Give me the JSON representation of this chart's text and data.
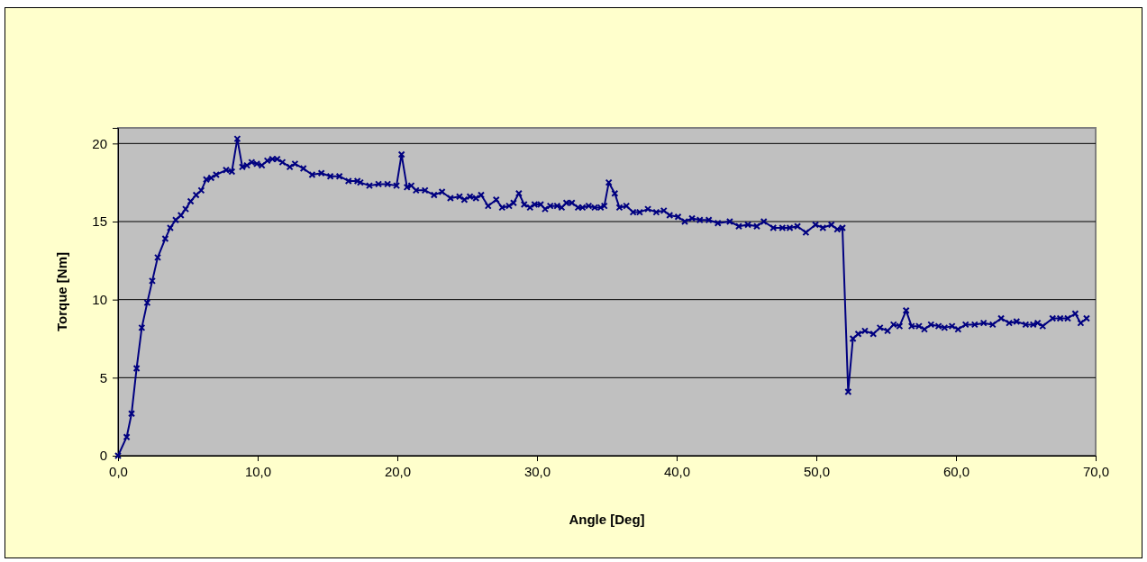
{
  "chart_data": {
    "type": "line",
    "xlabel": "Angle [Deg]",
    "ylabel": "Torque [Nm]",
    "xlim": [
      0,
      70
    ],
    "ylim": [
      0,
      21
    ],
    "xticks": [
      {
        "value": 0,
        "label": "0,0"
      },
      {
        "value": 10,
        "label": "10,0"
      },
      {
        "value": 20,
        "label": "20,0"
      },
      {
        "value": 30,
        "label": "30,0"
      },
      {
        "value": 40,
        "label": "40,0"
      },
      {
        "value": 50,
        "label": "50,0"
      },
      {
        "value": 60,
        "label": "60,0"
      },
      {
        "value": 70,
        "label": "70,0"
      }
    ],
    "yticks": [
      0,
      5,
      10,
      15,
      20
    ],
    "grid": "y",
    "marker": "cross",
    "line_style": "solid",
    "series": [
      {
        "color": "#000080",
        "x": [
          0,
          0.62,
          0.97,
          1.33,
          1.7,
          2.09,
          2.45,
          2.84,
          3.38,
          3.74,
          4.13,
          4.5,
          4.84,
          5.2,
          5.59,
          5.96,
          6.32,
          6.67,
          7.03,
          7.74,
          8.15,
          8.54,
          8.9,
          9.23,
          9.57,
          9.94,
          10.3,
          10.69,
          11.05,
          11.4,
          11.77,
          12.3,
          12.67,
          13.27,
          13.9,
          14.56,
          15.2,
          15.85,
          16.5,
          17.14,
          17.35,
          18.0,
          18.65,
          19.3,
          19.94,
          20.3,
          20.69,
          21.0,
          21.34,
          21.98,
          22.63,
          23.2,
          23.8,
          24.45,
          24.8,
          25.2,
          25.63,
          26.0,
          26.5,
          27.08,
          27.5,
          28.0,
          28.32,
          28.7,
          29.08,
          29.5,
          29.83,
          30.26,
          30.58,
          30.95,
          31.44,
          31.77,
          32.1,
          32.5,
          32.94,
          33.26,
          33.7,
          34.13,
          34.56,
          34.82,
          35.14,
          35.57,
          35.9,
          36.4,
          36.88,
          37.35,
          37.94,
          38.54,
          39.08,
          39.5,
          40.1,
          40.58,
          41.1,
          41.66,
          42.3,
          42.95,
          43.8,
          44.45,
          45.1,
          45.74,
          46.24,
          46.92,
          47.57,
          48.1,
          48.65,
          49.25,
          49.94,
          50.47,
          51.08,
          51.5,
          51.87,
          52.28,
          52.62,
          53.0,
          53.48,
          54.08,
          54.56,
          55.1,
          55.53,
          55.96,
          56.43,
          56.82,
          57.35,
          57.74,
          58.21,
          58.75,
          59.18,
          59.72,
          60.15,
          60.69,
          61.34,
          61.98,
          62.63,
          63.23,
          63.81,
          64.34,
          64.99,
          65.53,
          65.85,
          66.21,
          66.92,
          67.46,
          68.0,
          68.54,
          68.93,
          69.35
        ],
        "values": [
          0,
          1.2,
          2.7,
          5.6,
          8.2,
          9.8,
          11.2,
          12.7,
          13.9,
          14.6,
          15.1,
          15.4,
          15.8,
          16.3,
          16.7,
          17.0,
          17.7,
          17.8,
          18.0,
          18.3,
          18.2,
          20.3,
          18.5,
          18.6,
          18.8,
          18.7,
          18.6,
          18.9,
          19.0,
          19.0,
          18.8,
          18.5,
          18.7,
          18.4,
          18.0,
          18.1,
          17.9,
          17.9,
          17.6,
          17.6,
          17.5,
          17.3,
          17.4,
          17.4,
          17.3,
          19.3,
          17.2,
          17.3,
          17.0,
          17.0,
          16.7,
          16.9,
          16.5,
          16.6,
          16.4,
          16.6,
          16.5,
          16.7,
          16.0,
          16.4,
          15.9,
          16.0,
          16.2,
          16.8,
          16.1,
          15.9,
          16.1,
          16.1,
          15.8,
          16.0,
          16.0,
          15.9,
          16.2,
          16.2,
          15.9,
          15.9,
          16.0,
          15.9,
          15.9,
          16.0,
          17.5,
          16.8,
          15.9,
          16.0,
          15.6,
          15.6,
          15.8,
          15.6,
          15.7,
          15.4,
          15.3,
          15.0,
          15.2,
          15.1,
          15.1,
          14.9,
          15.0,
          14.7,
          14.8,
          14.7,
          15.0,
          14.6,
          14.6,
          14.6,
          14.7,
          14.3,
          14.8,
          14.6,
          14.8,
          14.5,
          14.6,
          4.1,
          7.5,
          7.8,
          8.0,
          7.8,
          8.2,
          8.0,
          8.4,
          8.3,
          9.3,
          8.3,
          8.3,
          8.1,
          8.4,
          8.3,
          8.2,
          8.3,
          8.1,
          8.4,
          8.4,
          8.5,
          8.4,
          8.8,
          8.5,
          8.6,
          8.4,
          8.4,
          8.5,
          8.3,
          8.8,
          8.8,
          8.8,
          9.1,
          8.5,
          8.8
        ]
      }
    ]
  }
}
